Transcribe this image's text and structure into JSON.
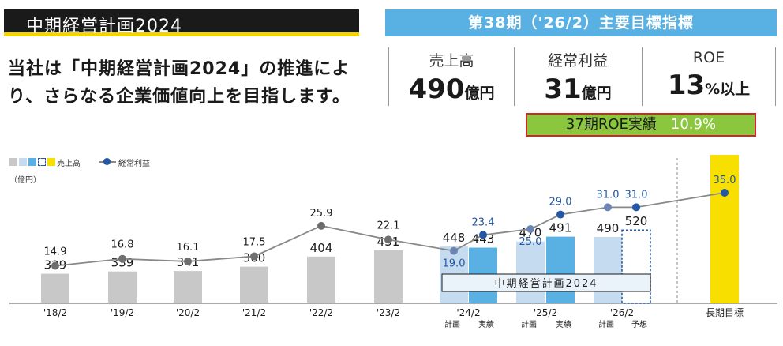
{
  "header": {
    "title": "中期経営計画2024"
  },
  "lead_text": "当社は「中期経営計画2024」の推進により、さらなる企業価値向上を目指します。",
  "kpi_panel": {
    "title": "第38期（'26/2）主要目標指標",
    "items": [
      {
        "label": "売上高",
        "value": "490",
        "unit": "億円"
      },
      {
        "label": "経常利益",
        "value": "31",
        "unit": "億円"
      },
      {
        "label": "ROE",
        "value": "13",
        "unit": "%以上"
      }
    ],
    "roe_actual": {
      "label": "37期ROE実績",
      "value": "10.9%"
    }
  },
  "colors": {
    "gray_bar": "#c8c8c8",
    "plan_bar": "#c5dcf0",
    "actual_bar": "#59b1e3",
    "forecast_border": "#2457a3",
    "target_bar": "#f7e000",
    "line": "#888888",
    "marker": "#2457a3",
    "title_bg": "#1a1a1a",
    "title_underline": "#f2d400",
    "roe_fill": "#8cc63f",
    "roe_border": "#d6242c"
  },
  "chart_data": {
    "type": "bar",
    "legend": {
      "bar_label": "売上高",
      "line_label": "経常利益",
      "unit": "（億円）"
    },
    "mid_term_plan_label": "中期経営計画2024",
    "groups": [
      {
        "label": "'18/2",
        "sublabels": [],
        "bars": [
          {
            "kind": "history",
            "value": 329
          }
        ],
        "profits": [
          {
            "value": 14.9,
            "label": "14.9"
          }
        ]
      },
      {
        "label": "'19/2",
        "sublabels": [],
        "bars": [
          {
            "kind": "history",
            "value": 339
          }
        ],
        "profits": [
          {
            "value": 16.8,
            "label": "16.8"
          }
        ]
      },
      {
        "label": "'20/2",
        "sublabels": [],
        "bars": [
          {
            "kind": "history",
            "value": 341
          }
        ],
        "profits": [
          {
            "value": 16.1,
            "label": "16.1"
          }
        ]
      },
      {
        "label": "'21/2",
        "sublabels": [],
        "bars": [
          {
            "kind": "history",
            "value": 360
          }
        ],
        "profits": [
          {
            "value": 17.5,
            "label": "17.5"
          }
        ]
      },
      {
        "label": "'22/2",
        "sublabels": [],
        "bars": [
          {
            "kind": "history",
            "value": 404
          }
        ],
        "profits": [
          {
            "value": 25.9,
            "label": "25.9"
          }
        ]
      },
      {
        "label": "'23/2",
        "sublabels": [],
        "bars": [
          {
            "kind": "history",
            "value": 431
          }
        ],
        "profits": [
          {
            "value": 22.1,
            "label": "22.1"
          }
        ]
      },
      {
        "label": "'24/2",
        "sublabels": [
          "計画",
          "実績"
        ],
        "bars": [
          {
            "kind": "plan",
            "value": 448
          },
          {
            "kind": "actual",
            "value": 443
          }
        ],
        "profits": [
          {
            "value": 19.0,
            "label": "19.0"
          },
          {
            "value": 23.4,
            "label": "23.4"
          }
        ]
      },
      {
        "label": "'25/2",
        "sublabels": [
          "計画",
          "実績"
        ],
        "bars": [
          {
            "kind": "plan",
            "value": 470
          },
          {
            "kind": "actual",
            "value": 491
          }
        ],
        "profits": [
          {
            "value": 25.0,
            "label": "25.0"
          },
          {
            "value": 29.0,
            "label": "29.0"
          }
        ]
      },
      {
        "label": "'26/2",
        "sublabels": [
          "計画",
          "予想"
        ],
        "bars": [
          {
            "kind": "plan",
            "value": 490
          },
          {
            "kind": "forecast",
            "value": 520
          }
        ],
        "profits": [
          {
            "value": 31.0,
            "label": "31.0"
          },
          {
            "value": 31.0,
            "label": "31.0"
          }
        ]
      },
      {
        "label": "長期目標",
        "sublabels": [],
        "bars": [
          {
            "kind": "target",
            "value": null
          }
        ],
        "profits": [
          {
            "value": 35.0,
            "label": "35.0"
          }
        ]
      }
    ]
  }
}
